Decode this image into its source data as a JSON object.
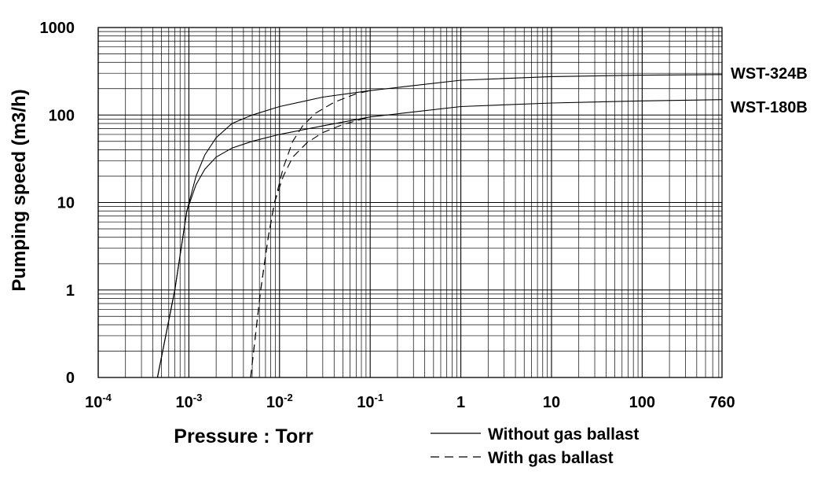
{
  "chart_data": {
    "type": "line",
    "title": "",
    "xlabel": "Pressure : Torr",
    "ylabel": "Pumping speed (m3/h)",
    "x_scale": "log",
    "y_scale": "log",
    "xlim": [
      0.0001,
      760
    ],
    "ylim": [
      0.1,
      1000
    ],
    "grid": true,
    "legend_position": "bottom-right",
    "x_ticks": [
      {
        "value": 0.0001,
        "base": "10",
        "exp": "-4"
      },
      {
        "value": 0.001,
        "base": "10",
        "exp": "-3"
      },
      {
        "value": 0.01,
        "base": "10",
        "exp": "-2"
      },
      {
        "value": 0.1,
        "base": "10",
        "exp": "-1"
      },
      {
        "value": 1,
        "base": "1",
        "exp": ""
      },
      {
        "value": 10,
        "base": "10",
        "exp": ""
      },
      {
        "value": 100,
        "base": "100",
        "exp": ""
      },
      {
        "value": 760,
        "base": "760",
        "exp": ""
      }
    ],
    "y_ticks": [
      {
        "value": 0.1,
        "label": "0"
      },
      {
        "value": 1,
        "label": "1"
      },
      {
        "value": 10,
        "label": "10"
      },
      {
        "value": 100,
        "label": "100"
      },
      {
        "value": 1000,
        "label": "1000"
      }
    ],
    "legend": [
      {
        "label": "Without gas ballast",
        "style": "solid"
      },
      {
        "label": "With gas ballast",
        "style": "dashed"
      }
    ],
    "series_labels": [
      "WST-324B",
      "WST-180B"
    ],
    "series": [
      {
        "name": "WST-324B",
        "style": "solid",
        "x": [
          0.00045,
          0.0007,
          0.00095,
          0.0012,
          0.0015,
          0.002,
          0.003,
          0.005,
          0.01,
          0.03,
          0.1,
          1,
          10,
          100,
          760
        ],
        "y": [
          0.1,
          1,
          8,
          20,
          35,
          55,
          80,
          100,
          125,
          160,
          190,
          250,
          275,
          285,
          290
        ]
      },
      {
        "name": "WST-180B",
        "style": "solid",
        "x": [
          0.00045,
          0.0007,
          0.00095,
          0.0012,
          0.0015,
          0.002,
          0.003,
          0.005,
          0.01,
          0.03,
          0.1,
          1,
          10,
          100,
          760
        ],
        "y": [
          0.1,
          1,
          8,
          16,
          24,
          33,
          42,
          50,
          60,
          75,
          95,
          125,
          137,
          145,
          150
        ]
      },
      {
        "name": "WST-324B",
        "style": "dashed",
        "x": [
          0.0048,
          0.0062,
          0.0075,
          0.0088,
          0.011,
          0.014,
          0.018,
          0.025,
          0.04,
          0.07,
          0.1
        ],
        "y": [
          0.1,
          1,
          4,
          10,
          25,
          50,
          75,
          105,
          140,
          175,
          190
        ]
      },
      {
        "name": "WST-180B",
        "style": "dashed",
        "x": [
          0.0048,
          0.0062,
          0.0075,
          0.0088,
          0.011,
          0.014,
          0.02,
          0.03,
          0.05,
          0.1
        ],
        "y": [
          0.1,
          1,
          4,
          10,
          20,
          33,
          48,
          63,
          78,
          95
        ]
      }
    ]
  }
}
